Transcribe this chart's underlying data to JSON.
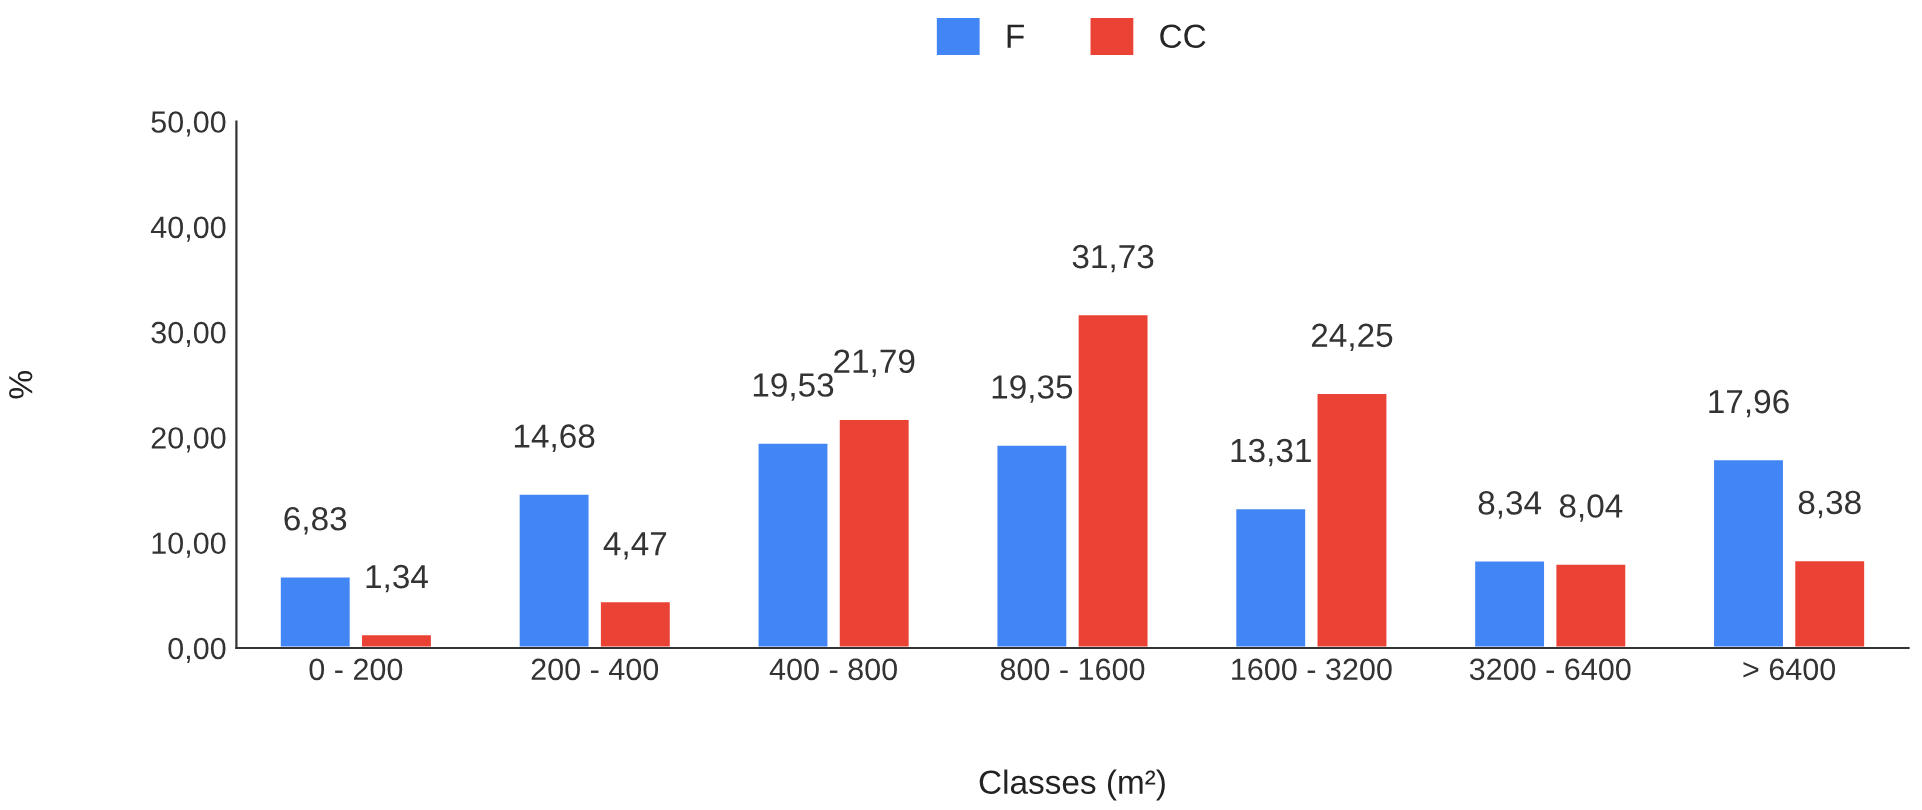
{
  "chart_data": {
    "type": "bar",
    "xlabel": "Classes (m²)",
    "ylabel": "%",
    "categories": [
      "0 - 200",
      "200 - 400",
      "400 - 800",
      "800 - 1600",
      "1600 - 3200",
      "3200 - 6400",
      "> 6400"
    ],
    "series": [
      {
        "name": "F",
        "color": "#4285f4",
        "values": [
          6.83,
          14.68,
          19.53,
          19.35,
          13.31,
          8.34,
          17.96
        ],
        "value_labels": [
          "6,83",
          "14,68",
          "19,53",
          "19,35",
          "13,31",
          "8,34",
          "17,96"
        ]
      },
      {
        "name": "CC",
        "color": "#ea4335",
        "values": [
          1.34,
          4.47,
          21.79,
          31.73,
          24.25,
          8.04,
          8.38
        ],
        "value_labels": [
          "1,34",
          "4,47",
          "21,79",
          "31,73",
          "24,25",
          "8,04",
          "8,38"
        ]
      }
    ],
    "ylim": [
      0,
      50
    ],
    "yticks": [
      {
        "value": 0,
        "label": "0,00"
      },
      {
        "value": 10,
        "label": "10,00"
      },
      {
        "value": 20,
        "label": "20,00"
      },
      {
        "value": 30,
        "label": "30,00"
      },
      {
        "value": 40,
        "label": "40,00"
      },
      {
        "value": 50,
        "label": "50,00"
      }
    ],
    "grid": false,
    "legend": "top"
  }
}
